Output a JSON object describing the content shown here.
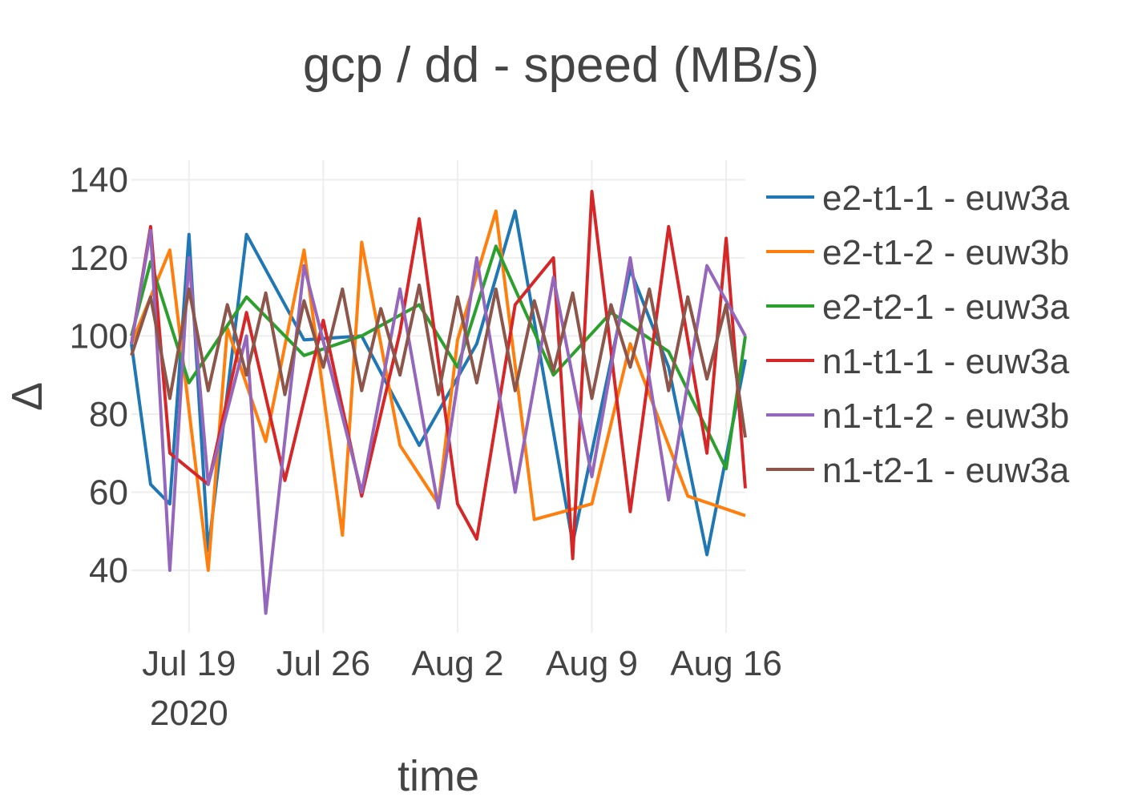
{
  "chart_data": {
    "type": "line",
    "title": "gcp / dd - speed (MB/s)",
    "xlabel": "time",
    "ylabel": "Δ",
    "x_range": [
      "2020-07-16",
      "2020-08-17"
    ],
    "x_ticks": [
      {
        "date": "2020-07-19",
        "label": "Jul 19",
        "sublabel": "2020"
      },
      {
        "date": "2020-07-26",
        "label": "Jul 26",
        "sublabel": ""
      },
      {
        "date": "2020-08-02",
        "label": "Aug 2",
        "sublabel": ""
      },
      {
        "date": "2020-08-09",
        "label": "Aug 9",
        "sublabel": ""
      },
      {
        "date": "2020-08-16",
        "label": "Aug 16",
        "sublabel": ""
      }
    ],
    "ylim": [
      24,
      145
    ],
    "y_ticks": [
      40,
      60,
      80,
      100,
      120,
      140
    ],
    "grid": true,
    "legend": "right",
    "series": [
      {
        "name": "e2-t1-1 - euw3a",
        "color": "#1f77b4",
        "x": [
          "2020-07-16",
          "2020-07-17",
          "2020-07-18",
          "2020-07-19",
          "2020-07-20",
          "2020-07-22",
          "2020-07-25",
          "2020-07-28",
          "2020-07-31",
          "2020-08-03",
          "2020-08-05",
          "2020-08-08",
          "2020-08-11",
          "2020-08-13",
          "2020-08-15",
          "2020-08-17"
        ],
        "values": [
          98,
          62,
          57,
          126,
          45,
          126,
          99,
          100,
          72,
          98,
          132,
          47,
          117,
          92,
          44,
          94
        ]
      },
      {
        "name": "e2-t1-2 - euw3b",
        "color": "#ff7f0e",
        "x": [
          "2020-07-16",
          "2020-07-18",
          "2020-07-20",
          "2020-07-21",
          "2020-07-23",
          "2020-07-25",
          "2020-07-27",
          "2020-07-28",
          "2020-07-30",
          "2020-08-01",
          "2020-08-02",
          "2020-08-04",
          "2020-08-06",
          "2020-08-09",
          "2020-08-11",
          "2020-08-14",
          "2020-08-17"
        ],
        "values": [
          98,
          122,
          40,
          102,
          73,
          122,
          49,
          124,
          72,
          57,
          99,
          132,
          53,
          57,
          98,
          59,
          54
        ]
      },
      {
        "name": "e2-t2-1 - euw3a",
        "color": "#2ca02c",
        "x": [
          "2020-07-16",
          "2020-07-17",
          "2020-07-19",
          "2020-07-22",
          "2020-07-25",
          "2020-07-28",
          "2020-07-31",
          "2020-08-02",
          "2020-08-04",
          "2020-08-07",
          "2020-08-10",
          "2020-08-13",
          "2020-08-16",
          "2020-08-17"
        ],
        "values": [
          100,
          119,
          88,
          110,
          95,
          100,
          108,
          92,
          123,
          90,
          106,
          96,
          66,
          100
        ]
      },
      {
        "name": "n1-t1-1 - euw3a",
        "color": "#d62728",
        "x": [
          "2020-07-16",
          "2020-07-17",
          "2020-07-18",
          "2020-07-20",
          "2020-07-22",
          "2020-07-24",
          "2020-07-26",
          "2020-07-28",
          "2020-07-30",
          "2020-07-31",
          "2020-08-02",
          "2020-08-03",
          "2020-08-05",
          "2020-08-07",
          "2020-08-08",
          "2020-08-09",
          "2020-08-11",
          "2020-08-13",
          "2020-08-15",
          "2020-08-16",
          "2020-08-17"
        ],
        "values": [
          98,
          128,
          70,
          62,
          106,
          63,
          104,
          59,
          101,
          130,
          57,
          48,
          108,
          120,
          43,
          137,
          55,
          128,
          70,
          125,
          61
        ]
      },
      {
        "name": "n1-t1-2 - euw3b",
        "color": "#9467bd",
        "x": [
          "2020-07-16",
          "2020-07-17",
          "2020-07-18",
          "2020-07-19",
          "2020-07-20",
          "2020-07-22",
          "2020-07-23",
          "2020-07-25",
          "2020-07-28",
          "2020-07-30",
          "2020-08-01",
          "2020-08-03",
          "2020-08-05",
          "2020-08-07",
          "2020-08-09",
          "2020-08-11",
          "2020-08-13",
          "2020-08-15",
          "2020-08-17"
        ],
        "values": [
          98,
          127,
          40,
          120,
          62,
          100,
          29,
          118,
          60,
          112,
          56,
          120,
          60,
          115,
          64,
          120,
          58,
          118,
          100
        ]
      },
      {
        "name": "n1-t2-1 - euw3a",
        "color": "#8c564b",
        "x": [
          "2020-07-16",
          "2020-07-17",
          "2020-07-18",
          "2020-07-19",
          "2020-07-20",
          "2020-07-21",
          "2020-07-22",
          "2020-07-23",
          "2020-07-24",
          "2020-07-25",
          "2020-07-26",
          "2020-07-27",
          "2020-07-28",
          "2020-07-29",
          "2020-07-30",
          "2020-07-31",
          "2020-08-01",
          "2020-08-02",
          "2020-08-03",
          "2020-08-04",
          "2020-08-05",
          "2020-08-06",
          "2020-08-07",
          "2020-08-08",
          "2020-08-09",
          "2020-08-10",
          "2020-08-11",
          "2020-08-12",
          "2020-08-13",
          "2020-08-14",
          "2020-08-15",
          "2020-08-16",
          "2020-08-17"
        ],
        "values": [
          95,
          110,
          84,
          112,
          86,
          108,
          90,
          111,
          85,
          109,
          92,
          112,
          86,
          107,
          90,
          113,
          85,
          110,
          88,
          112,
          86,
          109,
          91,
          111,
          84,
          108,
          92,
          112,
          86,
          110,
          89,
          108,
          74
        ]
      }
    ]
  }
}
